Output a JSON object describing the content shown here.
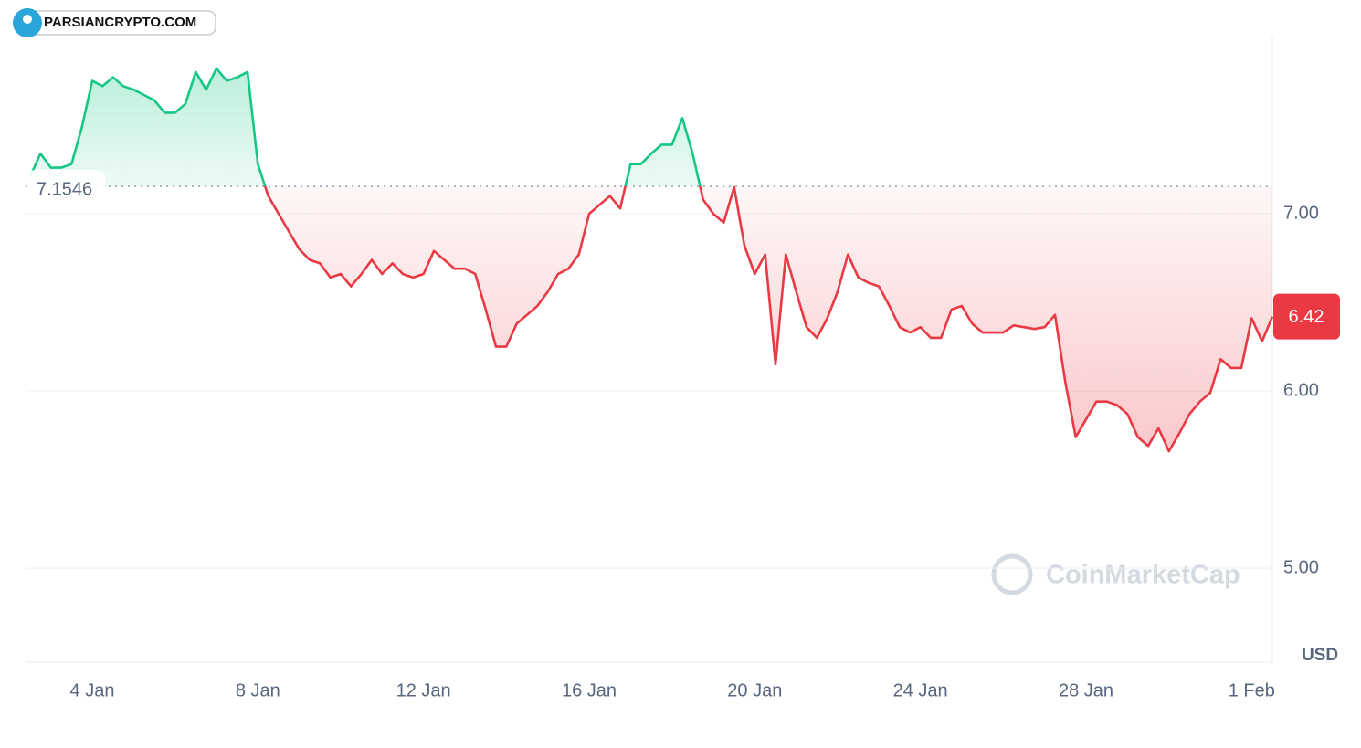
{
  "chart_data": {
    "type": "line",
    "site_watermark": "PARSIANCRYPTO.COM",
    "watermark": "CoinMarketCap",
    "currency": "USD",
    "baseline": 7.1546,
    "up_color": "#16c784",
    "down_color": "#ea3943",
    "categories": [
      null,
      null,
      null,
      null,
      null,
      null,
      "4 Jan",
      null,
      null,
      null,
      null,
      null,
      null,
      null,
      null,
      null,
      null,
      null,
      null,
      null,
      null,
      null,
      "8 Jan",
      null,
      null,
      null,
      null,
      null,
      null,
      null,
      null,
      null,
      null,
      null,
      null,
      null,
      null,
      null,
      "12 Jan",
      null,
      null,
      null,
      null,
      null,
      null,
      null,
      null,
      null,
      null,
      null,
      null,
      null,
      null,
      null,
      "16 Jan",
      null,
      null,
      null,
      null,
      null,
      null,
      null,
      null,
      null,
      null,
      null,
      null,
      null,
      null,
      null,
      "20 Jan",
      null,
      null,
      null,
      null,
      null,
      null,
      null,
      null,
      null,
      null,
      null,
      null,
      null,
      null,
      null,
      "24 Jan",
      null,
      null,
      null,
      null,
      null,
      null,
      null,
      null,
      null,
      null,
      null,
      null,
      null,
      null,
      null,
      "28 Jan",
      null,
      null,
      null,
      null,
      null,
      null,
      null,
      null,
      null,
      null,
      null,
      null,
      null,
      null,
      null,
      "1 Feb",
      null,
      null
    ],
    "values": [
      7.21,
      7.34,
      7.26,
      7.26,
      7.28,
      7.49,
      7.75,
      7.72,
      7.77,
      7.72,
      7.7,
      7.67,
      7.64,
      7.57,
      7.57,
      7.62,
      7.8,
      7.7,
      7.82,
      7.75,
      7.77,
      7.8,
      7.28,
      7.1,
      7.0,
      6.9,
      6.8,
      6.74,
      6.72,
      6.64,
      6.66,
      6.59,
      6.66,
      6.74,
      6.66,
      6.72,
      6.66,
      6.64,
      6.66,
      6.79,
      6.74,
      6.69,
      6.69,
      6.66,
      6.46,
      6.25,
      6.25,
      6.38,
      6.43,
      6.48,
      6.56,
      6.66,
      6.69,
      6.77,
      7.0,
      7.05,
      7.1,
      7.03,
      7.28,
      7.28,
      7.34,
      7.39,
      7.39,
      7.54,
      7.34,
      7.08,
      7.0,
      6.95,
      7.15,
      6.82,
      6.66,
      6.77,
      6.15,
      6.77,
      6.56,
      6.36,
      6.3,
      6.41,
      6.56,
      6.77,
      6.64,
      6.61,
      6.59,
      6.48,
      6.36,
      6.33,
      6.36,
      6.3,
      6.3,
      6.46,
      6.48,
      6.38,
      6.33,
      6.33,
      6.33,
      6.37,
      6.36,
      6.35,
      6.36,
      6.43,
      6.05,
      5.74,
      5.84,
      5.94,
      5.94,
      5.92,
      5.87,
      5.74,
      5.69,
      5.79,
      5.66,
      5.76,
      5.87,
      5.94,
      5.99,
      6.18,
      6.13,
      6.13,
      6.41,
      6.28,
      6.42
    ],
    "ylim": [
      4.47,
      8.0
    ],
    "yticks": [
      {
        "value": 5,
        "label": "5.00"
      },
      {
        "value": 6,
        "label": "6.00"
      },
      {
        "value": 7,
        "label": "7.00"
      }
    ],
    "grid": true
  }
}
